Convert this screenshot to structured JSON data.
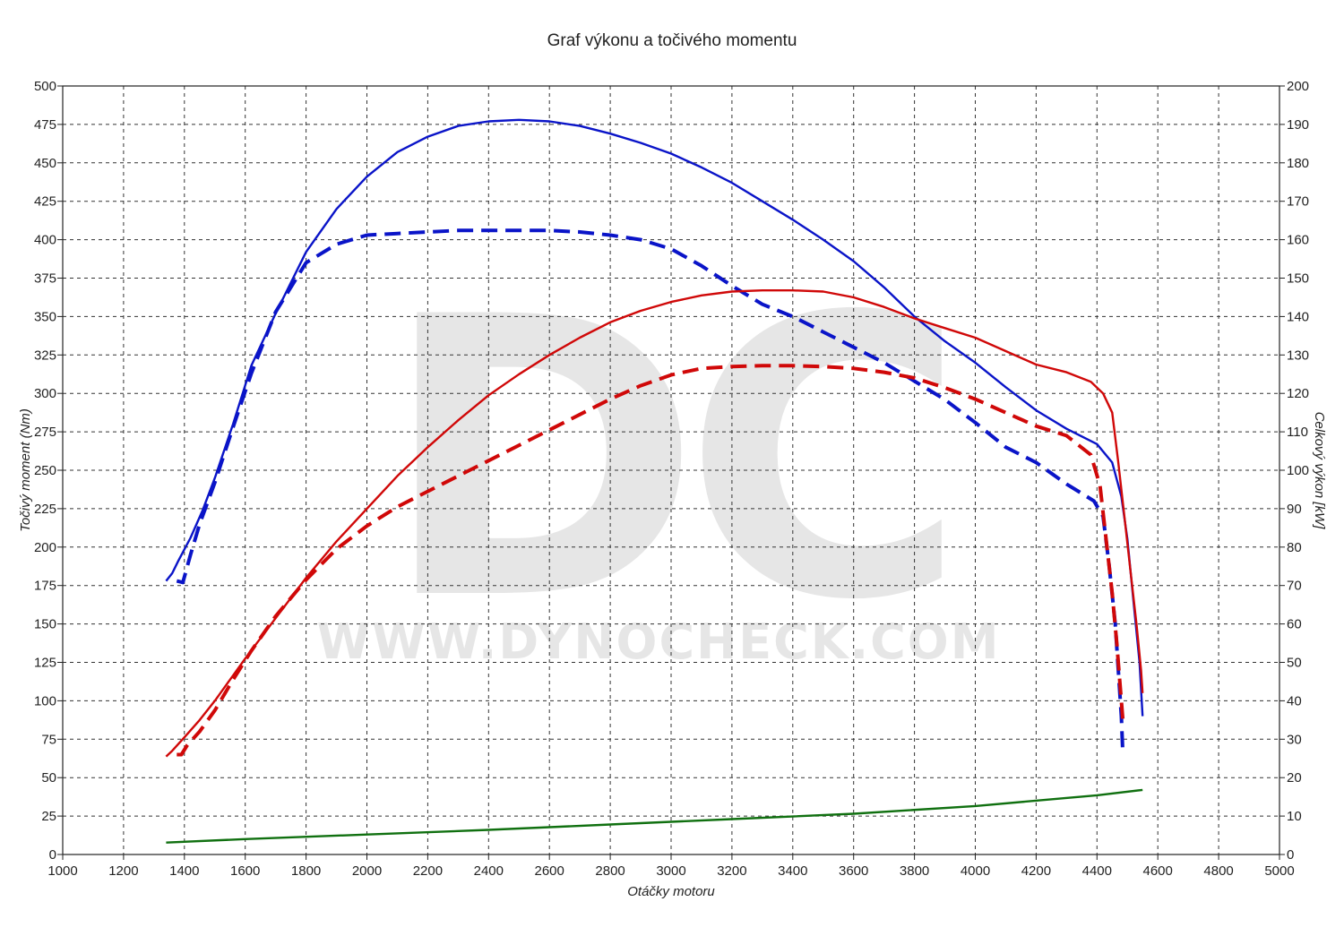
{
  "chart_data": {
    "type": "line",
    "title": "Graf výkonu a točivého momentu",
    "xlabel": "Otáčky motoru",
    "ylabel_left": "Točivý moment (Nm)",
    "ylabel_right": "Celkový výkon [kW]",
    "xlim": [
      1000,
      5000
    ],
    "ylim_left": [
      0,
      500
    ],
    "ylim_right": [
      0,
      200
    ],
    "x_ticks": [
      1000,
      1200,
      1400,
      1600,
      1800,
      2000,
      2200,
      2400,
      2600,
      2800,
      3000,
      3200,
      3400,
      3600,
      3800,
      4000,
      4200,
      4400,
      4600,
      4800,
      5000
    ],
    "y_ticks_left": [
      0,
      25,
      50,
      75,
      100,
      125,
      150,
      175,
      200,
      225,
      250,
      275,
      300,
      325,
      350,
      375,
      400,
      425,
      450,
      475,
      500
    ],
    "y_ticks_right": [
      0,
      10,
      20,
      30,
      40,
      50,
      60,
      70,
      80,
      90,
      100,
      110,
      120,
      130,
      140,
      150,
      160,
      170,
      180,
      190,
      200
    ],
    "grid": true,
    "watermark": {
      "letters": "DC",
      "url": "WWW.DYNOCHECK.COM"
    },
    "series": [
      {
        "key": "torque_tuned",
        "axis": "left",
        "color": "#0a14c8",
        "dash": "solid",
        "x": [
          1340,
          1360,
          1380,
          1420,
          1460,
          1500,
          1560,
          1620,
          1700,
          1800,
          1900,
          2000,
          2100,
          2200,
          2300,
          2400,
          2500,
          2600,
          2700,
          2800,
          2900,
          3000,
          3100,
          3200,
          3300,
          3400,
          3500,
          3600,
          3700,
          3800,
          3900,
          4000,
          4100,
          4200,
          4300,
          4400,
          4450,
          4480,
          4500,
          4520,
          4540,
          4550
        ],
        "values": [
          178,
          183,
          191,
          206,
          224,
          245,
          280,
          318,
          352,
          392,
          420,
          441,
          457,
          467,
          474,
          477,
          478,
          477,
          474,
          469,
          463,
          456,
          447,
          437,
          425,
          413,
          400,
          386,
          369,
          350,
          334,
          320,
          304,
          289,
          277,
          267,
          255,
          233,
          205,
          165,
          125,
          90
        ]
      },
      {
        "key": "torque_stock",
        "axis": "left",
        "color": "#0a14c8",
        "dash": "dashed",
        "x": [
          1375,
          1395,
          1420,
          1450,
          1500,
          1560,
          1620,
          1700,
          1800,
          1900,
          2000,
          2100,
          2200,
          2300,
          2400,
          2500,
          2600,
          2700,
          2800,
          2900,
          3000,
          3100,
          3200,
          3300,
          3400,
          3500,
          3600,
          3700,
          3800,
          3900,
          4000,
          4100,
          4200,
          4300,
          4390,
          4420,
          4440,
          4460,
          4470,
          4480,
          4485
        ],
        "values": [
          178,
          177,
          195,
          215,
          242,
          278,
          313,
          353,
          385,
          397,
          403,
          404,
          405,
          406,
          406,
          406,
          406,
          405,
          403,
          400,
          394,
          383,
          370,
          358,
          350,
          340,
          330,
          320,
          308,
          296,
          281,
          265,
          255,
          241,
          230,
          220,
          188,
          150,
          120,
          90,
          65
        ]
      },
      {
        "key": "power_tuned",
        "axis": "right",
        "color": "#d00808",
        "dash": "solid",
        "x": [
          1340,
          1360,
          1400,
          1450,
          1500,
          1600,
          1700,
          1800,
          1900,
          2000,
          2100,
          2200,
          2300,
          2400,
          2500,
          2600,
          2700,
          2800,
          2900,
          3000,
          3100,
          3200,
          3300,
          3400,
          3500,
          3600,
          3700,
          3800,
          3900,
          4000,
          4100,
          4200,
          4300,
          4380,
          4420,
          4450,
          4470,
          4490,
          4510,
          4530,
          4545,
          4550
        ],
        "values": [
          25.5,
          27,
          30.5,
          35,
          40,
          51,
          61.5,
          72,
          81.5,
          90,
          98.5,
          106,
          113,
          119.5,
          125,
          130,
          134.5,
          138.5,
          141.5,
          143.8,
          145.5,
          146.5,
          146.8,
          146.8,
          146.5,
          145,
          142.5,
          139.5,
          137,
          134.5,
          131,
          127.5,
          125.5,
          123,
          120,
          115,
          102,
          88,
          74,
          60,
          48,
          42
        ]
      },
      {
        "key": "power_stock",
        "axis": "right",
        "color": "#d00808",
        "dash": "dashed",
        "x": [
          1375,
          1390,
          1410,
          1450,
          1500,
          1560,
          1620,
          1700,
          1800,
          1900,
          2000,
          2100,
          2200,
          2300,
          2400,
          2500,
          2600,
          2700,
          2800,
          2900,
          3000,
          3100,
          3200,
          3300,
          3400,
          3500,
          3600,
          3700,
          3800,
          3900,
          4000,
          4100,
          4200,
          4300,
          4380,
          4410,
          4430,
          4450,
          4465,
          4478,
          4485
        ],
        "values": [
          26,
          26,
          28.5,
          32,
          37.5,
          45.5,
          53,
          62,
          71.5,
          79.5,
          85.5,
          90.5,
          94.5,
          98.5,
          102.5,
          106.5,
          110.5,
          114.5,
          118.5,
          122,
          124.8,
          126.5,
          127,
          127.2,
          127.2,
          127,
          126.5,
          125.5,
          124,
          121.5,
          118.5,
          115,
          111.5,
          109,
          104,
          96,
          82,
          68,
          55,
          42,
          35
        ]
      },
      {
        "key": "loss_power",
        "axis": "right",
        "color": "#107010",
        "dash": "solid",
        "x": [
          1340,
          1600,
          2000,
          2400,
          2800,
          3200,
          3600,
          4000,
          4400,
          4550
        ],
        "values": [
          3.1,
          4,
          5.2,
          6.4,
          7.8,
          9.2,
          10.6,
          12.6,
          15.4,
          16.8
        ]
      }
    ]
  }
}
